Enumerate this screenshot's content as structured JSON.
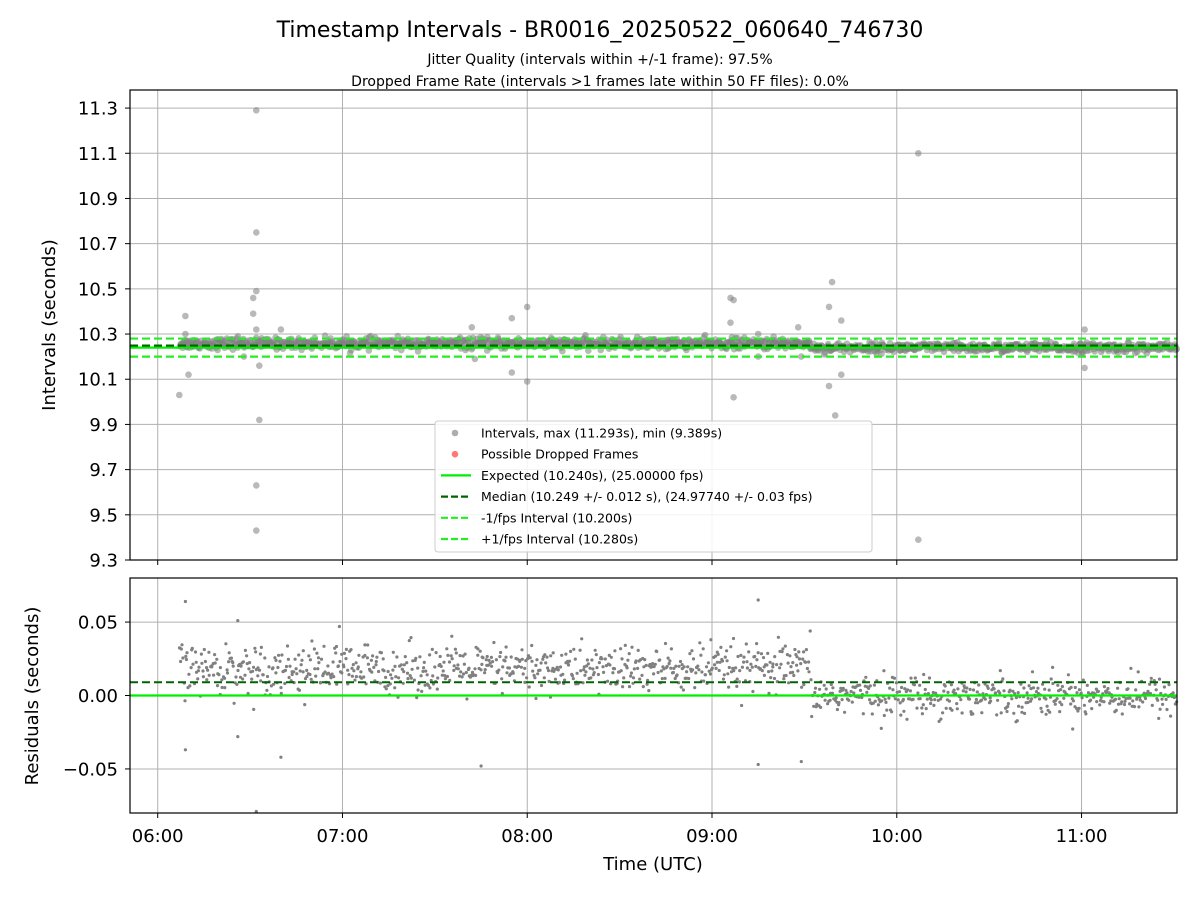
{
  "title": "Timestamp Intervals - BR0016_20250522_060640_746730",
  "subtitle_1": "Jitter Quality (intervals within +/-1 frame): 97.5%",
  "subtitle_2": "Dropped Frame Rate (intervals >1 frames late within 50 FF files): 0.0%",
  "colors": {
    "points": "#808080",
    "dropped": "#ff0000",
    "expected": "#00ee00",
    "median": "#006400",
    "fps_band": "#22ee22",
    "grid": "#b0b0b0"
  },
  "chart_data": [
    {
      "type": "scatter",
      "ylabel": "Intervals (seconds)",
      "ylim": [
        9.3,
        11.38
      ],
      "xlim": [
        "05:51",
        "11:31"
      ],
      "y_ticks": [
        "11.3",
        "11.1",
        "10.9",
        "10.7",
        "10.5",
        "10.3",
        "10.1",
        "9.9",
        "9.7",
        "9.5",
        "9.3"
      ],
      "grid": true,
      "legend_position": "lower-center",
      "legend": [
        {
          "label": "Intervals, max (11.293s), min (9.389s)",
          "kind": "dot",
          "color": "#999999"
        },
        {
          "label": "Possible Dropped Frames",
          "kind": "dot",
          "color": "#ff5555"
        },
        {
          "label": "Expected (10.240s), (25.00000 fps)",
          "kind": "line",
          "color": "#00ee00"
        },
        {
          "label": "Median (10.249 +/- 0.012 s), (24.97740 +/- 0.03 fps)",
          "kind": "dash",
          "color": "#006400"
        },
        {
          "label": "-1/fps Interval (10.200s)",
          "kind": "dash",
          "color": "#22ee22"
        },
        {
          "label": "+1/fps Interval (10.280s)",
          "kind": "dash",
          "color": "#22ee22"
        }
      ],
      "reference_lines": {
        "expected": 10.24,
        "median": 10.249,
        "minus_1fps": 10.2,
        "plus_1fps": 10.28
      },
      "baseline_segments": [
        {
          "start": "06:07",
          "end": "09:32",
          "center": 10.258,
          "spread": 0.016
        },
        {
          "start": "09:32",
          "end": "11:31",
          "center": 10.24,
          "spread": 0.014
        }
      ],
      "outliers": [
        {
          "x": "06:07",
          "y": 10.03
        },
        {
          "x": "06:09",
          "y": 10.38
        },
        {
          "x": "06:09",
          "y": 10.3
        },
        {
          "x": "06:10",
          "y": 10.12
        },
        {
          "x": "06:26",
          "y": 10.29
        },
        {
          "x": "06:28",
          "y": 10.2
        },
        {
          "x": "06:29",
          "y": 10.27
        },
        {
          "x": "06:31",
          "y": 10.46
        },
        {
          "x": "06:31",
          "y": 10.39
        },
        {
          "x": "06:32",
          "y": 11.29
        },
        {
          "x": "06:32",
          "y": 10.75
        },
        {
          "x": "06:32",
          "y": 10.49
        },
        {
          "x": "06:32",
          "y": 10.32
        },
        {
          "x": "06:33",
          "y": 10.16
        },
        {
          "x": "06:33",
          "y": 9.92
        },
        {
          "x": "06:32",
          "y": 9.63
        },
        {
          "x": "06:32",
          "y": 9.43
        },
        {
          "x": "06:40",
          "y": 10.32
        },
        {
          "x": "07:42",
          "y": 10.33
        },
        {
          "x": "07:43",
          "y": 10.19
        },
        {
          "x": "07:55",
          "y": 10.37
        },
        {
          "x": "07:55",
          "y": 10.13
        },
        {
          "x": "08:00",
          "y": 10.42
        },
        {
          "x": "08:00",
          "y": 10.09
        },
        {
          "x": "09:06",
          "y": 10.46
        },
        {
          "x": "09:07",
          "y": 10.45
        },
        {
          "x": "09:06",
          "y": 10.35
        },
        {
          "x": "09:07",
          "y": 10.02
        },
        {
          "x": "09:15",
          "y": 10.3
        },
        {
          "x": "09:15",
          "y": 10.2
        },
        {
          "x": "09:28",
          "y": 10.33
        },
        {
          "x": "09:29",
          "y": 10.2
        },
        {
          "x": "09:38",
          "y": 10.42
        },
        {
          "x": "09:39",
          "y": 10.53
        },
        {
          "x": "09:38",
          "y": 10.07
        },
        {
          "x": "09:40",
          "y": 9.94
        },
        {
          "x": "09:42",
          "y": 10.36
        },
        {
          "x": "09:42",
          "y": 10.12
        },
        {
          "x": "10:07",
          "y": 11.1
        },
        {
          "x": "10:07",
          "y": 9.39
        },
        {
          "x": "11:01",
          "y": 10.32
        },
        {
          "x": "11:01",
          "y": 10.15
        }
      ]
    },
    {
      "type": "scatter",
      "ylabel": "Residuals (seconds)",
      "xlabel": "Time (UTC)",
      "ylim": [
        -0.08,
        0.08
      ],
      "xlim": [
        "05:51",
        "11:31"
      ],
      "y_ticks": [
        "0.05",
        "0.00",
        "−0.05"
      ],
      "x_ticks": [
        "06:00",
        "07:00",
        "08:00",
        "09:00",
        "10:00",
        "11:00"
      ],
      "grid": true,
      "reference_lines": {
        "zero": 0.0,
        "median_offset": 0.009
      },
      "baseline_segments": [
        {
          "start": "06:07",
          "end": "09:32",
          "center": 0.018,
          "spread": 0.011
        },
        {
          "start": "09:32",
          "end": "11:31",
          "center": 0.0,
          "spread": 0.009
        }
      ],
      "outliers": [
        {
          "x": "06:09",
          "y": 0.064
        },
        {
          "x": "06:09",
          "y": -0.037
        },
        {
          "x": "06:26",
          "y": 0.051
        },
        {
          "x": "06:26",
          "y": -0.028
        },
        {
          "x": "06:32",
          "y": -0.079
        },
        {
          "x": "06:40",
          "y": -0.042
        },
        {
          "x": "06:59",
          "y": 0.047
        },
        {
          "x": "07:45",
          "y": -0.048
        },
        {
          "x": "09:15",
          "y": 0.065
        },
        {
          "x": "09:15",
          "y": -0.047
        },
        {
          "x": "09:29",
          "y": -0.045
        }
      ]
    }
  ]
}
